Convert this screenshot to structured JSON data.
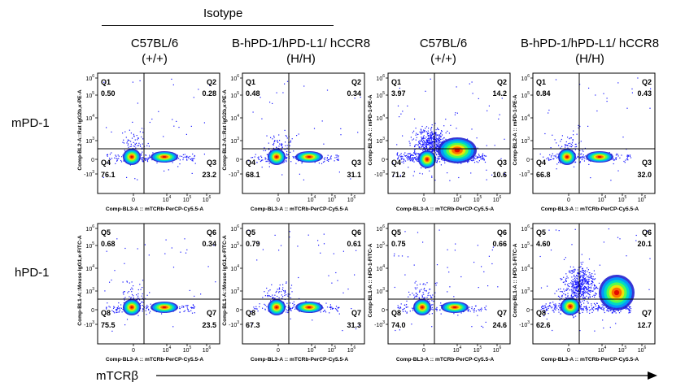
{
  "header": {
    "isotype_label": "Isotype",
    "columns": [
      {
        "line1": "C57BL/6",
        "line2": "(+/+)"
      },
      {
        "line1": "B-hPD-1/hPD-L1/ hCCR8",
        "line2": "(H/H)"
      },
      {
        "line1": "C57BL/6",
        "line2": "(+/+)"
      },
      {
        "line1": "B-hPD-1/hPD-L1/ hCCR8",
        "line2": "(H/H)"
      }
    ]
  },
  "rows": [
    {
      "label": "mPD-1"
    },
    {
      "label": "hPD-1"
    }
  ],
  "x_caption": "mTCRβ",
  "chart_data": [
    {
      "type": "scatter",
      "row": 0,
      "col": 0,
      "xlabel": "Comp-BL3-A :: mTCRb-PerCP-Cy5.5-A",
      "ylabel": "Comp-BL2-A::Rat IgG2b,κ-PE-A",
      "quadrants": [
        {
          "name": "Q1",
          "value": "0.50"
        },
        {
          "name": "Q2",
          "value": "0.28"
        },
        {
          "name": "Q3",
          "value": "23.2"
        },
        {
          "name": "Q4",
          "value": "76.1"
        }
      ]
    },
    {
      "type": "scatter",
      "row": 0,
      "col": 1,
      "xlabel": "Comp-BL3-A :: mTCRb-PerCP-Cy5.5-A",
      "ylabel": "Comp-BL2-A::Rat IgG2b,κ-PE-A",
      "quadrants": [
        {
          "name": "Q1",
          "value": "0.48"
        },
        {
          "name": "Q2",
          "value": "0.34"
        },
        {
          "name": "Q3",
          "value": "31.1"
        },
        {
          "name": "Q4",
          "value": "68.1"
        }
      ]
    },
    {
      "type": "scatter",
      "row": 0,
      "col": 2,
      "xlabel": "Comp-BL3-A :: mTCRb-PerCP-Cy5.5-A",
      "ylabel": "Comp-BL2-A :: mPD-1-PE-A",
      "quadrants": [
        {
          "name": "Q1",
          "value": "3.97"
        },
        {
          "name": "Q2",
          "value": "14.2"
        },
        {
          "name": "Q3",
          "value": "10.6"
        },
        {
          "name": "Q4",
          "value": "71.2"
        }
      ]
    },
    {
      "type": "scatter",
      "row": 0,
      "col": 3,
      "xlabel": "Comp-BL3-A :: mTCRb-PerCP-Cy5.5-A",
      "ylabel": "Comp-BL2-A :: mPD-1-PE-A",
      "quadrants": [
        {
          "name": "Q1",
          "value": "0.84"
        },
        {
          "name": "Q2",
          "value": "0.43"
        },
        {
          "name": "Q3",
          "value": "32.0"
        },
        {
          "name": "Q4",
          "value": "66.8"
        }
      ]
    },
    {
      "type": "scatter",
      "row": 1,
      "col": 0,
      "xlabel": "Comp-BL3-A :: mTCRb-PerCP-Cy5.5-A",
      "ylabel": "Comp-BL1-A::Mouse IgG1,κ-FITC-A",
      "quadrants": [
        {
          "name": "Q5",
          "value": "0.68"
        },
        {
          "name": "Q6",
          "value": "0.34"
        },
        {
          "name": "Q7",
          "value": "23.5"
        },
        {
          "name": "Q8",
          "value": "75.5"
        }
      ]
    },
    {
      "type": "scatter",
      "row": 1,
      "col": 1,
      "xlabel": "Comp-BL3-A :: mTCRb-PerCP-Cy5.5-A",
      "ylabel": "Comp-BL1-A::Mouse IgG1,κ-FITC-A",
      "quadrants": [
        {
          "name": "Q5",
          "value": "0.79"
        },
        {
          "name": "Q6",
          "value": "0.61"
        },
        {
          "name": "Q7",
          "value": "31.3"
        },
        {
          "name": "Q8",
          "value": "67.3"
        }
      ]
    },
    {
      "type": "scatter",
      "row": 1,
      "col": 2,
      "xlabel": "Comp-BL3-A :: mTCRb-PerCP-Cy5.5-A",
      "ylabel": "Comp-BL1-A :: hPD-1-FITC-A",
      "quadrants": [
        {
          "name": "Q5",
          "value": "0.75"
        },
        {
          "name": "Q6",
          "value": "0.66"
        },
        {
          "name": "Q7",
          "value": "24.6"
        },
        {
          "name": "Q8",
          "value": "74.0"
        }
      ]
    },
    {
      "type": "scatter",
      "row": 1,
      "col": 3,
      "xlabel": "Comp-BL3-A :: mTCRb-PerCP-Cy5.5-A",
      "ylabel": "Comp-BL1-A :: hPD-1-FITC-A",
      "quadrants": [
        {
          "name": "Q5",
          "value": "4.60"
        },
        {
          "name": "Q6",
          "value": "20.1"
        },
        {
          "name": "Q7",
          "value": "12.7"
        },
        {
          "name": "Q8",
          "value": "62.6"
        }
      ]
    }
  ]
}
